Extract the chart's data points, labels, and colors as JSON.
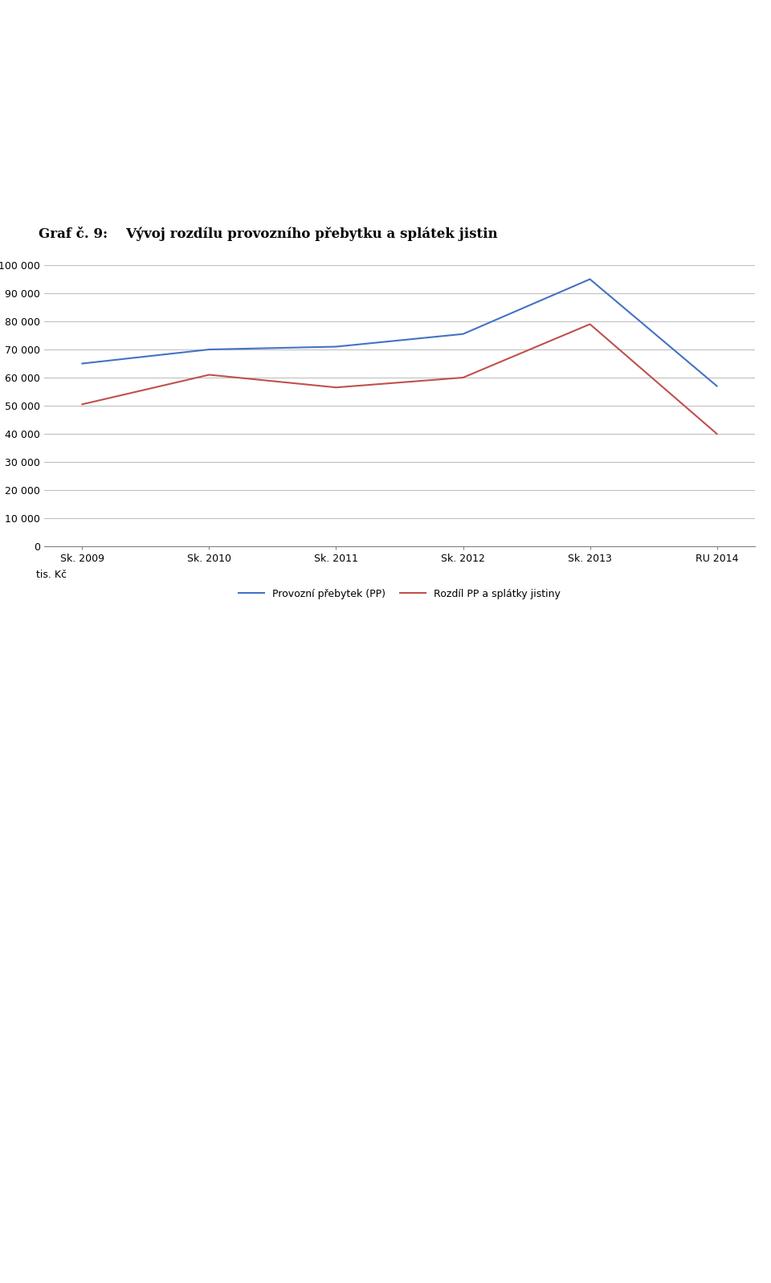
{
  "title": "Graf č. 9:    Vývoj rozdílu provozního přebytku a splátek jistin",
  "x_labels": [
    "Sk. 2009",
    "Sk. 2010",
    "Sk. 2011",
    "Sk. 2012",
    "Sk. 2013",
    "RU 2014"
  ],
  "provozni_prebytek": [
    65000,
    70000,
    71000,
    75500,
    95000,
    57000
  ],
  "rozdil_pp": [
    50500,
    61000,
    56500,
    60000,
    79000,
    40000
  ],
  "ylabel": "tis. Kč",
  "ylim": [
    0,
    100000
  ],
  "yticks": [
    0,
    10000,
    20000,
    30000,
    40000,
    50000,
    60000,
    70000,
    80000,
    90000,
    100000
  ],
  "line_color_blue": "#4472C4",
  "line_color_red": "#C0504D",
  "legend_label1": "Provozní přebytek (PP)",
  "legend_label2": "Rozdíl PP a splátky jistiny",
  "background_color": "#FFFFFF",
  "grid_color": "#C0C0C0",
  "title_fontsize": 12,
  "axis_fontsize": 9,
  "legend_fontsize": 9
}
